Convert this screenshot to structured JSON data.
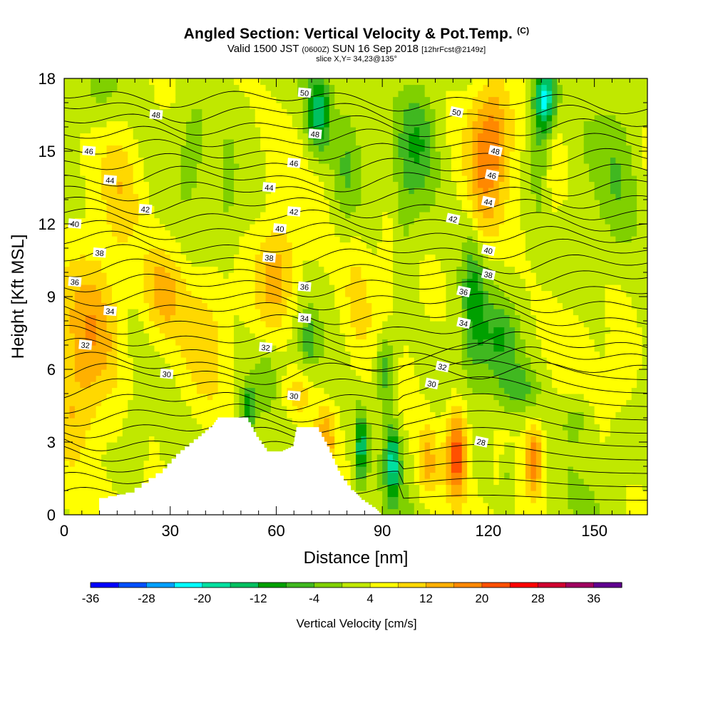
{
  "header": {
    "title": "Angled Section: Vertical Velocity & Pot.Temp.",
    "title_suffix": "(C)",
    "valid_prefix": "Valid 1500 JST",
    "valid_utc": "(0600Z)",
    "valid_date": "SUN 16 Sep 2018",
    "forecast": "[12hrFcst@2149z]",
    "slice": "slice X,Y= 34,23@135°"
  },
  "chart_data": {
    "type": "heatmap",
    "xlabel": "Distance [nm]",
    "ylabel": "Height [Kft MSL]",
    "xlim": [
      0,
      165
    ],
    "ylim": [
      0,
      18
    ],
    "x_ticks": [
      0,
      30,
      60,
      90,
      120,
      150
    ],
    "y_ticks": [
      0,
      3,
      6,
      9,
      12,
      15,
      18
    ],
    "colorbar": {
      "label": "Vertical Velocity [cm/s]",
      "tick_labels": [
        "-36",
        "-28",
        "-20",
        "-12",
        "-4",
        "4",
        "12",
        "20",
        "28",
        "36"
      ],
      "tick_values": [
        -36,
        -28,
        -20,
        -12,
        -4,
        4,
        12,
        20,
        28,
        36
      ],
      "bin_edges": [
        -36,
        -32,
        -28,
        -24,
        -20,
        -16,
        -12,
        -8,
        -4,
        0,
        4,
        8,
        12,
        16,
        20,
        24,
        28,
        32,
        36,
        40
      ],
      "colors": [
        "#0000ff",
        "#0050ff",
        "#00a0ff",
        "#00ffff",
        "#00e0a0",
        "#00c060",
        "#00a000",
        "#40b820",
        "#80d000",
        "#c0e800",
        "#ffff00",
        "#ffd800",
        "#ffb000",
        "#ff8800",
        "#ff5000",
        "#ff0000",
        "#d00030",
        "#a00060",
        "#600090"
      ]
    },
    "terrain": [
      [
        10,
        0.6
      ],
      [
        10,
        0.6
      ],
      [
        20,
        0.9
      ],
      [
        28,
        1.7
      ],
      [
        33,
        2.5
      ],
      [
        38,
        3.1
      ],
      [
        42,
        3.6
      ],
      [
        44,
        4.0
      ],
      [
        52,
        4.0
      ],
      [
        55,
        3.2
      ],
      [
        58,
        2.6
      ],
      [
        62,
        2.6
      ],
      [
        65,
        2.8
      ],
      [
        66,
        3.6
      ],
      [
        72,
        3.6
      ],
      [
        75,
        2.8
      ],
      [
        78,
        1.8
      ],
      [
        82,
        1.0
      ],
      [
        84,
        0.7
      ],
      [
        88,
        0.3
      ],
      [
        90,
        0.0
      ]
    ],
    "theta_contours": [
      {
        "value": "28",
        "lx": 118,
        "ly": 3.0
      },
      {
        "value": "30",
        "lx": 29,
        "ly": 5.8
      },
      {
        "value": "30",
        "lx": 65,
        "ly": 4.9
      },
      {
        "value": "30",
        "lx": 104,
        "ly": 5.4
      },
      {
        "value": "32",
        "lx": 6,
        "ly": 7.0
      },
      {
        "value": "32",
        "lx": 57,
        "ly": 6.9
      },
      {
        "value": "32",
        "lx": 107,
        "ly": 6.1
      },
      {
        "value": "34",
        "lx": 13,
        "ly": 8.4
      },
      {
        "value": "34",
        "lx": 68,
        "ly": 8.1
      },
      {
        "value": "34",
        "lx": 113,
        "ly": 7.9
      },
      {
        "value": "36",
        "lx": 3,
        "ly": 9.6
      },
      {
        "value": "36",
        "lx": 68,
        "ly": 9.4
      },
      {
        "value": "36",
        "lx": 113,
        "ly": 9.2
      },
      {
        "value": "38",
        "lx": 10,
        "ly": 10.8
      },
      {
        "value": "38",
        "lx": 58,
        "ly": 10.6
      },
      {
        "value": "38",
        "lx": 120,
        "ly": 9.9
      },
      {
        "value": "40",
        "lx": 3,
        "ly": 12.0
      },
      {
        "value": "40",
        "lx": 61,
        "ly": 11.8
      },
      {
        "value": "40",
        "lx": 120,
        "ly": 10.9
      },
      {
        "value": "42",
        "lx": 23,
        "ly": 12.6
      },
      {
        "value": "42",
        "lx": 65,
        "ly": 12.5
      },
      {
        "value": "42",
        "lx": 110,
        "ly": 12.2
      },
      {
        "value": "44",
        "lx": 13,
        "ly": 13.8
      },
      {
        "value": "44",
        "lx": 58,
        "ly": 13.5
      },
      {
        "value": "44",
        "lx": 120,
        "ly": 12.9
      },
      {
        "value": "46",
        "lx": 7,
        "ly": 15.0
      },
      {
        "value": "46",
        "lx": 65,
        "ly": 14.5
      },
      {
        "value": "46",
        "lx": 121,
        "ly": 14.0
      },
      {
        "value": "48",
        "lx": 26,
        "ly": 16.5
      },
      {
        "value": "48",
        "lx": 71,
        "ly": 15.7
      },
      {
        "value": "48",
        "lx": 122,
        "ly": 15.0
      },
      {
        "value": "50",
        "lx": 68,
        "ly": 17.4
      },
      {
        "value": "50",
        "lx": 111,
        "ly": 16.6
      }
    ],
    "velocity_field": [
      {
        "x": 8,
        "z": 7.5,
        "sx": 9,
        "sz": 3.2,
        "w": 14
      },
      {
        "x": 28,
        "z": 9.2,
        "sx": 6,
        "sz": 2.0,
        "w": 10
      },
      {
        "x": 60,
        "z": 9.8,
        "sx": 6,
        "sz": 2.2,
        "w": 12
      },
      {
        "x": 40,
        "z": 7.5,
        "sx": 6,
        "sz": 3.0,
        "w": 5
      },
      {
        "x": 16,
        "z": 13.5,
        "sx": 5,
        "sz": 2.5,
        "w": 5
      },
      {
        "x": 2,
        "z": 4.0,
        "sx": 6,
        "sz": 2.0,
        "w": 7
      },
      {
        "x": 74,
        "z": 3.2,
        "sx": 3,
        "sz": 1.4,
        "w": 11
      },
      {
        "x": 66,
        "z": 5.0,
        "sx": 4,
        "sz": 1.0,
        "w": 8
      },
      {
        "x": 103,
        "z": 2.2,
        "sx": 3,
        "sz": 1.6,
        "w": 10
      },
      {
        "x": 111,
        "z": 2.6,
        "sx": 3,
        "sz": 1.8,
        "w": 21
      },
      {
        "x": 133,
        "z": 2.3,
        "sx": 2.5,
        "sz": 1.4,
        "w": 16
      },
      {
        "x": 121,
        "z": 15.8,
        "sx": 6,
        "sz": 2.5,
        "w": 14
      },
      {
        "x": 118,
        "z": 12.5,
        "sx": 4,
        "sz": 2.5,
        "w": 7
      },
      {
        "x": 138,
        "z": 14.0,
        "sx": 4,
        "sz": 2.0,
        "w": 6
      },
      {
        "x": 83,
        "z": 9.5,
        "sx": 5,
        "sz": 3.0,
        "w": 5
      },
      {
        "x": 158,
        "z": 5.8,
        "sx": 4,
        "sz": 1.5,
        "w": 5
      },
      {
        "x": 92,
        "z": 11.0,
        "sx": 4,
        "sz": 2.5,
        "w": 4
      },
      {
        "x": 72,
        "z": 16.6,
        "sx": 3.5,
        "sz": 1.6,
        "w": -18
      },
      {
        "x": 80,
        "z": 14.5,
        "sx": 4,
        "sz": 2.5,
        "w": -7
      },
      {
        "x": 100,
        "z": 15.5,
        "sx": 5,
        "sz": 2.5,
        "w": -9
      },
      {
        "x": 96,
        "z": 12.0,
        "sx": 3,
        "sz": 3.0,
        "w": -4
      },
      {
        "x": 136,
        "z": 17.2,
        "sx": 3,
        "sz": 1.3,
        "w": -22
      },
      {
        "x": 135,
        "z": 15.0,
        "sx": 3,
        "sz": 2.5,
        "w": -8
      },
      {
        "x": 116,
        "z": 9.0,
        "sx": 3.5,
        "sz": 3.2,
        "w": -12
      },
      {
        "x": 123,
        "z": 7.2,
        "sx": 5,
        "sz": 1.6,
        "w": -8
      },
      {
        "x": 91,
        "z": 6.0,
        "sx": 3,
        "sz": 1.6,
        "w": -12
      },
      {
        "x": 69,
        "z": 7.2,
        "sx": 2,
        "sz": 1.0,
        "w": -8
      },
      {
        "x": 52,
        "z": 4.4,
        "sx": 2,
        "sz": 1.0,
        "w": -14
      },
      {
        "x": 57,
        "z": 5.6,
        "sx": 3,
        "sz": 1.2,
        "w": -5
      },
      {
        "x": 84,
        "z": 2.8,
        "sx": 1.6,
        "sz": 1.4,
        "w": -18
      },
      {
        "x": 93,
        "z": 2.2,
        "sx": 2,
        "sz": 1.5,
        "w": -20
      },
      {
        "x": 126,
        "z": 1.6,
        "sx": 2,
        "sz": 1.0,
        "w": -6
      },
      {
        "x": 128,
        "z": 5.2,
        "sx": 6,
        "sz": 1.0,
        "w": -7
      },
      {
        "x": 145,
        "z": 4.0,
        "sx": 4,
        "sz": 1.0,
        "w": -6
      },
      {
        "x": 9,
        "z": 17.2,
        "sx": 6,
        "sz": 1.5,
        "w": -4
      },
      {
        "x": 36,
        "z": 15.5,
        "sx": 4,
        "sz": 2.0,
        "w": -4
      },
      {
        "x": 157,
        "z": 14.0,
        "sx": 6,
        "sz": 3.5,
        "w": -5
      },
      {
        "x": 46,
        "z": 12.5,
        "sx": 3,
        "sz": 2.0,
        "w": -3
      },
      {
        "x": 20,
        "z": 3.0,
        "sx": 3,
        "sz": 1.5,
        "w": -4
      }
    ]
  }
}
